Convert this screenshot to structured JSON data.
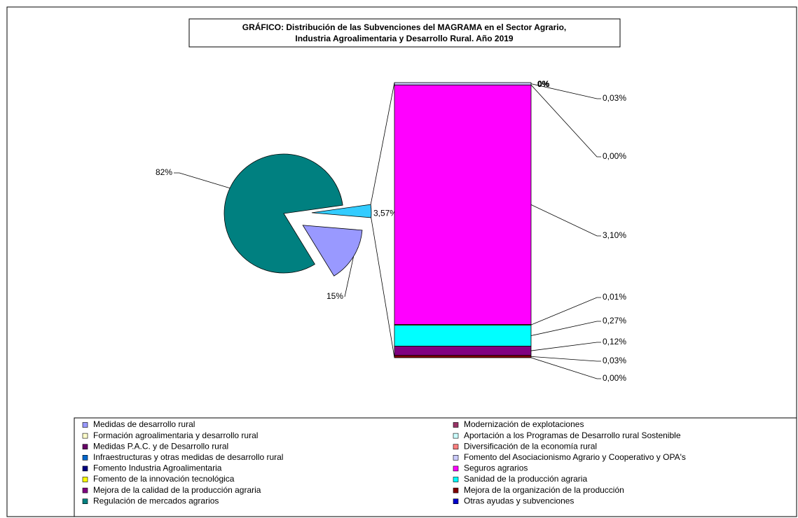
{
  "chart_data": {
    "type": "pie-of-bar",
    "title": [
      "GRÁFICO: Distribución de las Subvenciones del MAGRAMA en el Sector Agrario,",
      "Industria Agroalimentaria y Desarrollo Rural. Año 2019"
    ],
    "other": {
      "value": 3.57,
      "label": "3,57%",
      "color": "#33ccff"
    },
    "series": [
      {
        "name": "Medidas de desarrollo rural",
        "color": "#9999ff",
        "part": "pie",
        "value": 15,
        "value_label": "15%"
      },
      {
        "name": "Modernización de explotaciones",
        "color": "#993366",
        "part": "bar",
        "value": 0,
        "value_label": "0%"
      },
      {
        "name": "Formación agroalimentaria y desarrollo rural",
        "color": "#ffffcc",
        "part": "bar",
        "value": 0,
        "value_label": "0%"
      },
      {
        "name": "Aportación a los Programas de Desarrollo rural Sostenible",
        "color": "#ccffff",
        "part": "bar",
        "value": 0,
        "value_label": "0%"
      },
      {
        "name": "Medidas P.A.C. y de Desarrollo rural",
        "color": "#660066",
        "part": "bar",
        "value": 0,
        "value_label": "0%"
      },
      {
        "name": "Diversificación de la economía rural",
        "color": "#ff8080",
        "part": "bar",
        "value": 0,
        "value_label": "0%"
      },
      {
        "name": "Infraestructuras y otras medidas de desarrollo rural",
        "color": "#0066cc",
        "part": "bar",
        "value": 0,
        "value_label": "0%"
      },
      {
        "name": "Fomento del Asociacionismo Agrario y Cooperativo y OPA's",
        "color": "#ccccff",
        "part": "bar",
        "value": 0.03,
        "value_label": "0,03%"
      },
      {
        "name": "Fomento Industria Agroalimentaria",
        "color": "#000080",
        "part": "bar",
        "value": 0,
        "value_label": "0,00%"
      },
      {
        "name": "Seguros agrarios",
        "color": "#ff00ff",
        "part": "bar",
        "value": 3.1,
        "value_label": "3,10%"
      },
      {
        "name": "Fomento de la innovación tecnológica",
        "color": "#ffff00",
        "part": "bar",
        "value": 0.01,
        "value_label": "0,01%"
      },
      {
        "name": "Sanidad de la producción agraria",
        "color": "#00ffff",
        "part": "bar",
        "value": 0.27,
        "value_label": "0,27%"
      },
      {
        "name": "Mejora de la calidad de la producción agraria",
        "color": "#800080",
        "part": "bar",
        "value": 0.12,
        "value_label": "0,12%"
      },
      {
        "name": "Mejora de la organización de la producción",
        "color": "#800000",
        "part": "bar",
        "value": 0.03,
        "value_label": "0,03%"
      },
      {
        "name": "Regulación de mercados agrarios",
        "color": "#008080",
        "part": "pie",
        "value": 82,
        "value_label": "82%"
      },
      {
        "name": "Otras ayudas y subvenciones",
        "color": "#0000cc",
        "part": "bar",
        "value": 0,
        "value_label": "0,00%"
      }
    ]
  }
}
